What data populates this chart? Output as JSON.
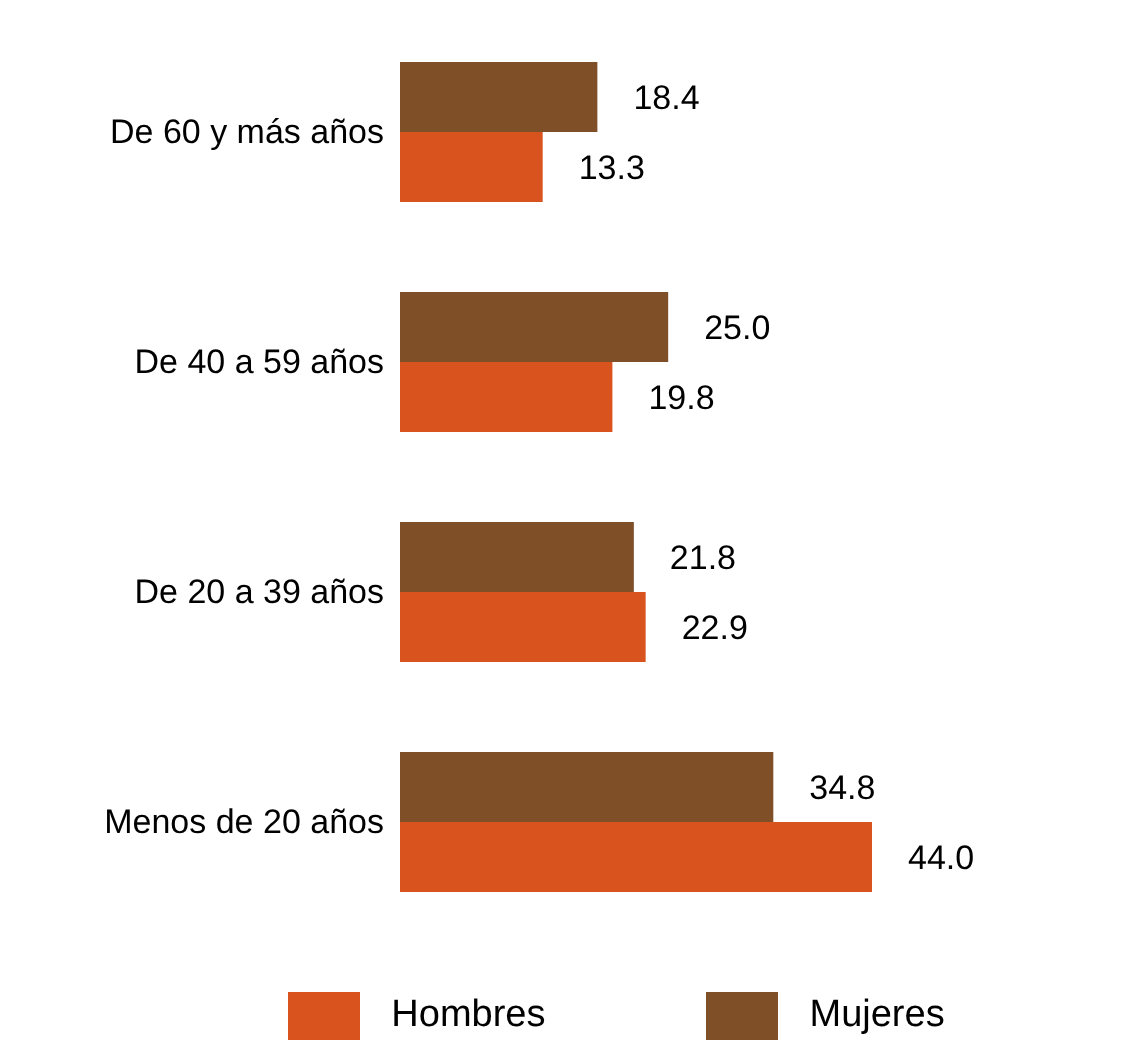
{
  "chart_data": {
    "type": "bar",
    "orientation": "horizontal",
    "categories": [
      "De 60 y más años",
      "De 40 a 59 años",
      "De 20 a 39 años",
      "Menos de 20 años"
    ],
    "series": [
      {
        "name": "Hombres",
        "color": "#d9531e",
        "values": [
          13.3,
          19.8,
          22.9,
          44.0
        ],
        "value_labels": [
          "13.3",
          "19.8",
          "22.9",
          "44.0"
        ]
      },
      {
        "name": "Mujeres",
        "color": "#7f4f28",
        "values": [
          18.4,
          25.0,
          21.8,
          34.8
        ],
        "value_labels": [
          "18.4",
          "25.0",
          "21.8",
          "34.8"
        ]
      }
    ],
    "legend": "bottom",
    "grid": false
  }
}
